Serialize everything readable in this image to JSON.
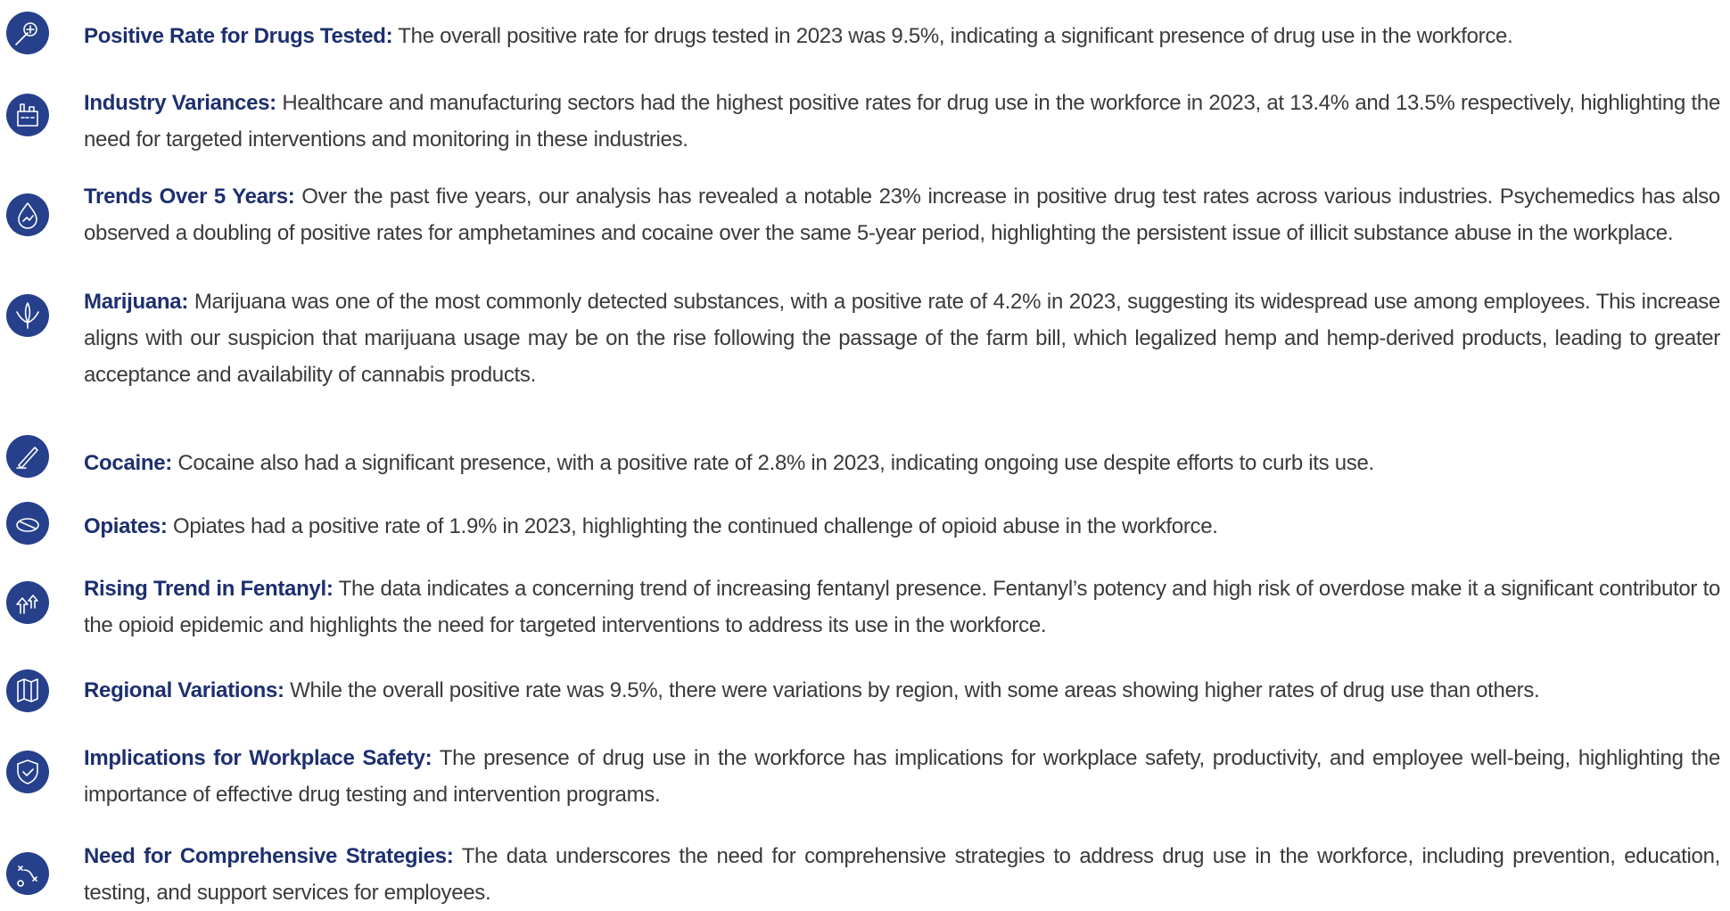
{
  "items": [
    {
      "title": "Positive Rate for Drugs Tested:",
      "text": "The overall positive rate for drugs tested in 2023 was 9.5%, indicating a significant presence of drug use in the workforce."
    },
    {
      "title": "Industry Variances:",
      "text": "Healthcare and manufacturing sectors had the highest positive rates for drug use in the workforce in 2023, at 13.4% and 13.5% respectively, highlighting the need for targeted interventions and monitoring in these industries."
    },
    {
      "title": "Trends Over 5 Years:",
      "text": "Over the past five years, our analysis has revealed a notable 23% increase in positive drug test rates across various industries. Psychemedics has also observed a doubling of positive rates for amphetamines and cocaine over the same 5-year period, highlighting the persistent issue of illicit substance abuse in the workplace."
    },
    {
      "title": "Marijuana:",
      "text": "Marijuana was one of the most commonly detected substances, with a positive rate of 4.2% in 2023, suggesting its widespread use among employees. This increase aligns with our suspicion that marijuana usage may be on the rise following the passage of the farm bill, which legalized hemp and hemp-derived products, leading to greater acceptance and availability of cannabis products."
    },
    {
      "title": "Cocaine:",
      "text": "Cocaine also had a significant presence, with a positive rate of 2.8% in 2023, indicating ongoing use despite efforts to curb its use."
    },
    {
      "title": "Opiates:",
      "text": "Opiates had a positive rate of 1.9% in 2023, highlighting the continued challenge of opioid abuse in the workforce."
    },
    {
      "title": "Rising Trend in Fentanyl:",
      "text": "The data indicates a concerning trend of increasing fentanyl presence. Fentanyl’s potency and high risk of overdose make it a significant contributor to the opioid epidemic and highlights the need for targeted interventions to address its use in the workforce."
    },
    {
      "title": "Regional Variations:",
      "text": "While the overall positive rate was 9.5%, there were variations by region, with some areas showing higher rates of drug use than others."
    },
    {
      "title": "Implications for Workplace Safety:",
      "text": "The presence of drug use in the workforce has implications for workplace safety, productivity, and employee well-being, highlighting the importance of effective drug testing and intervention programs."
    },
    {
      "title": "Need for Comprehensive Strategies:",
      "text": "The data underscores the need for comprehensive strategies to address drug use in the workforce, including prevention, education, testing, and support services for employees."
    }
  ]
}
